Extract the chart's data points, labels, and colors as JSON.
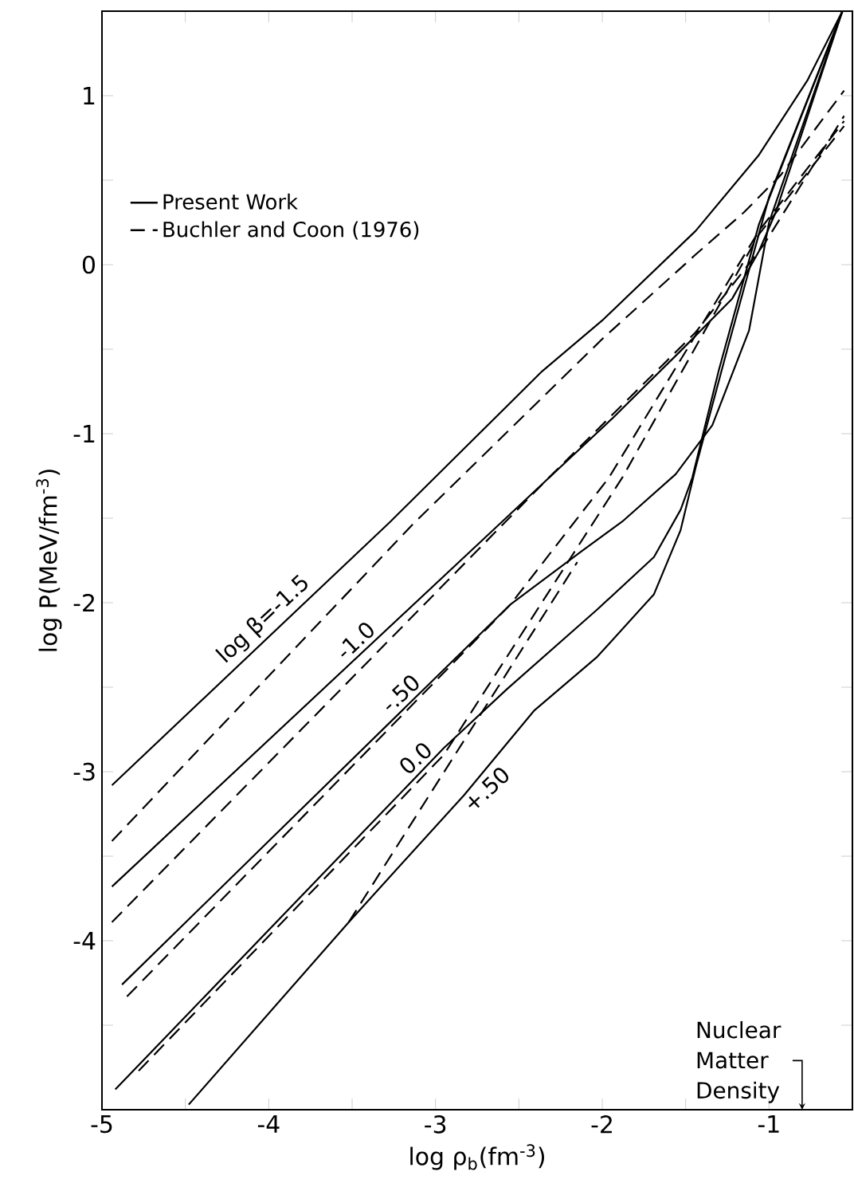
{
  "chart_data": {
    "type": "line",
    "xlabel": "log ρ$_{b}$(fm$^{-3}$)",
    "ylabel": "log P(MeV/fm$^{-3}$)",
    "xlim": [
      -5,
      -0.5
    ],
    "ylim": [
      -5,
      1.5
    ],
    "xticks": [
      -5,
      {
        "value": -4.5,
        "label": null
      },
      -4,
      {
        "value": -3.5,
        "label": null
      },
      -3,
      {
        "value": -2.5,
        "label": null
      },
      -2,
      {
        "value": -1.5,
        "label": null
      },
      -1
    ],
    "yticks": [
      {
        "value": -4.5,
        "label": null
      },
      -4,
      {
        "value": -3.5,
        "label": null
      },
      -3,
      {
        "value": -2.5,
        "label": null
      },
      -2,
      {
        "value": -1.5,
        "label": null
      },
      -1,
      {
        "value": -0.5,
        "label": null
      },
      0,
      {
        "value": 0.5,
        "label": null
      },
      1
    ],
    "legend": "top left",
    "series": [
      {
        "name": "Present Work",
        "color": "#000000",
        "line_style": "solid",
        "x": [
          -4.94,
          -3.27,
          -2.36,
          -2.0,
          -1.44,
          -1.06,
          -0.77,
          -0.56
        ],
        "values": [
          -3.08,
          -1.52,
          -0.63,
          -0.33,
          0.2,
          0.65,
          1.09,
          1.5
        ]
      },
      {
        "color": "#000000",
        "line_style": "solid",
        "x": [
          -4.94,
          -2.6,
          -1.94,
          -1.53,
          -1.22,
          -1.06,
          -0.96,
          -0.56
        ],
        "values": [
          -3.68,
          -1.52,
          -0.91,
          -0.51,
          -0.2,
          0.08,
          0.31,
          1.5
        ]
      },
      {
        "color": "#000000",
        "line_style": "solid",
        "x": [
          -4.88,
          -2.55,
          -2.13,
          -1.88,
          -1.56,
          -1.34,
          -1.12,
          -1.0,
          -0.56
        ],
        "values": [
          -4.26,
          -2.01,
          -1.7,
          -1.52,
          -1.24,
          -0.95,
          -0.39,
          0.25,
          1.5
        ]
      },
      {
        "color": "#000000",
        "line_style": "solid",
        "x": [
          -4.92,
          -2.95,
          -2.57,
          -2.03,
          -1.69,
          -1.53,
          -1.46,
          -1.3,
          -1.06,
          -0.56
        ],
        "values": [
          -4.88,
          -2.86,
          -2.51,
          -2.04,
          -1.73,
          -1.45,
          -1.26,
          -0.62,
          0.24,
          1.5
        ]
      },
      {
        "color": "#000000",
        "line_style": "solid",
        "x": [
          -4.48,
          -3.52,
          -2.83,
          -2.41,
          -2.03,
          -1.69,
          -1.53,
          -1.44,
          -1.25,
          -1.0,
          -0.56
        ],
        "values": [
          -4.97,
          -3.89,
          -3.14,
          -2.64,
          -2.32,
          -1.95,
          -1.57,
          -1.2,
          -0.5,
          0.4,
          1.5
        ]
      },
      {
        "name": "Buchler and Coon (1976)",
        "color": "#000000",
        "line_style": "dashed",
        "x": [
          -4.94,
          -3.14,
          -2.0,
          -1.44,
          -1.15,
          -0.93,
          -0.55
        ],
        "values": [
          -3.41,
          -1.54,
          -0.44,
          0.06,
          0.31,
          0.53,
          1.03
        ]
      },
      {
        "color": "#000000",
        "line_style": "dashed",
        "x": [
          -4.94,
          -2.32,
          -1.44,
          -1.03,
          -0.55
        ],
        "values": [
          -3.89,
          -1.26,
          -0.4,
          0.12,
          0.88
        ]
      },
      {
        "color": "#000000",
        "line_style": "dashed",
        "x": [
          -4.85,
          -2.55,
          -1.96,
          -1.06,
          -0.55
        ],
        "values": [
          -4.33,
          -2.01,
          -1.26,
          0.2,
          0.85
        ]
      },
      {
        "color": "#000000",
        "line_style": "dashed",
        "x": [
          -4.78,
          -2.95,
          -1.88,
          -1.06,
          -0.55
        ],
        "values": [
          -4.77,
          -2.9,
          -1.26,
          0.18,
          0.82
        ]
      },
      {
        "color": "#000000",
        "line_style": "dashed",
        "x": [
          -3.52,
          -2.15
        ],
        "values": [
          -3.89,
          -1.76
        ]
      }
    ],
    "annotations": [
      "log β=-1.5",
      "-1.0",
      "-.50",
      "0.0",
      "+.50",
      "Nuclear Matter Density"
    ]
  }
}
